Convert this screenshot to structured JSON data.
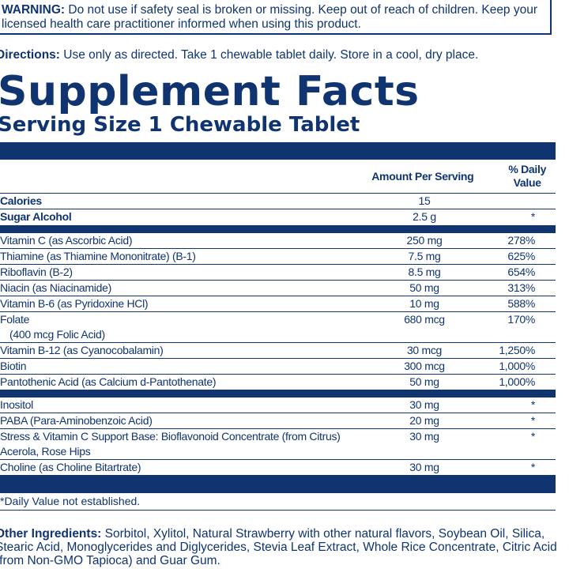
{
  "warning": {
    "label": "WARNING:",
    "text": "Do not use if safety seal is broken or missing. Keep out of reach of children. Keep your licensed health care practitioner informed when using this product."
  },
  "directions": {
    "label": "Directions:",
    "text": "Use only as directed. Take 1 chewable tablet daily. Store in a cool, dry place."
  },
  "facts": {
    "title": "Supplement Facts",
    "serving": "Serving Size 1 Chewable Tablet",
    "header": {
      "amount": "Amount Per Serving",
      "dv": "% Daily Value"
    },
    "groups": [
      {
        "rows": [
          {
            "name": "Calories",
            "amount": "15"
          },
          {
            "name": "Sugar Alcohol",
            "amount": "2.5 g",
            "dv": "*"
          }
        ]
      },
      {
        "rows": [
          {
            "name": "Vitamin C (as Ascorbic Acid)",
            "amount": "250 mg",
            "dv": "278%"
          },
          {
            "name": "Thiamine (as Thiamine Mononitrate) (B-1)",
            "amount": "7.5 mg",
            "dv": "625%"
          },
          {
            "name": "Riboflavin (B-2)",
            "amount": "8.5 mg",
            "dv": "654%"
          },
          {
            "name": "Niacin (as Niacinamide)",
            "amount": "50 mg",
            "dv": "313%"
          },
          {
            "name": "Vitamin B-6 (as Pyridoxine HCl)",
            "amount": "10 mg",
            "dv": "588%"
          },
          {
            "name": "Folate",
            "sub": "(400 mcg Folic Acid)",
            "amount": "680 mcg",
            "dv": "170%"
          },
          {
            "name": "Vitamin B-12 (as Cyanocobalamin)",
            "amount": "30 mcg",
            "dv": "1,250%"
          },
          {
            "name": "Biotin",
            "amount": "300 mcg",
            "dv": "1,000%"
          },
          {
            "name": "Pantothenic Acid (as Calcium d-Pantothenate)",
            "amount": "50 mg",
            "dv": "1,000%"
          }
        ]
      },
      {
        "rows": [
          {
            "name": "Inositol",
            "amount": "30 mg",
            "dv": "*"
          },
          {
            "name": "PABA (Para-Aminobenzoic Acid)",
            "amount": "20 mg",
            "dv": "*"
          },
          {
            "name": "Stress & Vitamin C Support Base: Bioflavonoid Concentrate (from Citrus) Acerola, Rose Hips",
            "amount": "30 mg",
            "dv": "*"
          },
          {
            "name": "Choline (as Choline Bitartrate)",
            "amount": "30 mg",
            "dv": "*"
          }
        ]
      }
    ],
    "footnote": "*Daily Value not established."
  },
  "other": {
    "label": "Other Ingredients:",
    "text": "Sorbitol, Xylitol, Natural Strawberry with other natural flavors, Soybean Oil, Silica, Stearic Acid, Monoglycerides and Diglycerides, Stevia Leaf Extract, Whole Rice Concentrate, Citric Acid (from Non-GMO Tapioca) and Guar Gum."
  }
}
